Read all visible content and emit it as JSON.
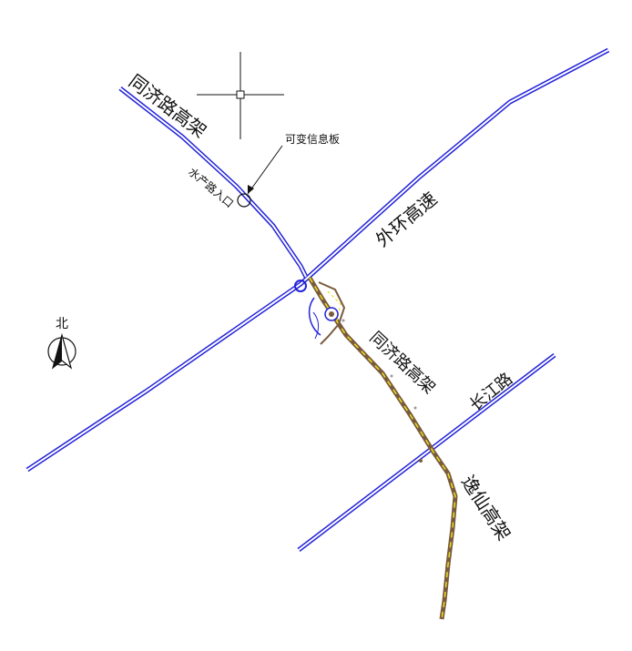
{
  "labels": {
    "tongji_elevated_top": "同济路高架",
    "shuichan_entrance": "水产路入口",
    "vms_board": "可变信息板",
    "outer_ring": "外环高速",
    "tongji_elevated_lower": "同济路高架",
    "changjiang_road": "长江路",
    "yixian_elevated": "逸仙高架",
    "north": "北"
  },
  "colors": {
    "road_blue": "#2323d8",
    "road_core": "#ffffff",
    "construction_brown": "#7a5a3c",
    "construction_yellow": "#e8e020",
    "text": "#111111"
  },
  "icons": {
    "north_arrow": "north-arrow-icon",
    "crosshair": "crosshair-icon"
  }
}
